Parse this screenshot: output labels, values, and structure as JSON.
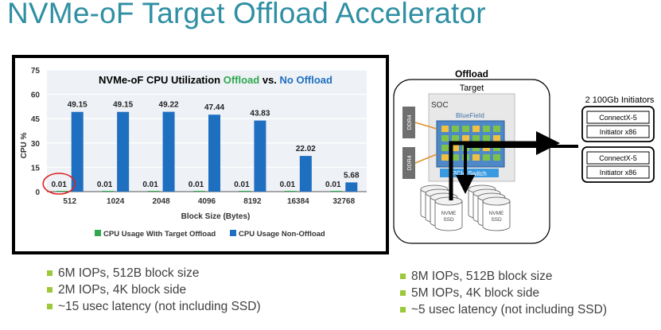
{
  "slide": {
    "title": "NVMe-oF Target Offload Accelerator"
  },
  "chart_data": {
    "type": "bar",
    "title_parts": [
      {
        "text": "NVMe-oF CPU Utilization ",
        "color": "#000000"
      },
      {
        "text": "Offload",
        "color": "#2fa84f"
      },
      {
        "text": " vs. ",
        "color": "#000000"
      },
      {
        "text": "No Offload",
        "color": "#1f6fc1"
      }
    ],
    "categories": [
      "512",
      "1024",
      "2048",
      "4096",
      "8192",
      "16384",
      "32768"
    ],
    "series": [
      {
        "name": "CPU Usage With Target Offload",
        "color": "#2fa84f",
        "values": [
          0.01,
          0.01,
          0.01,
          0.01,
          0.01,
          0.01,
          0.01
        ]
      },
      {
        "name": "CPU Usage Non-Offload",
        "color": "#1f6fc1",
        "values": [
          49.15,
          49.15,
          49.22,
          47.44,
          43.83,
          22.02,
          5.68
        ]
      }
    ],
    "xlabel": "Block Size (Bytes)",
    "ylabel": "CPU %",
    "yticks": [
      0,
      15,
      30,
      45,
      60,
      75
    ],
    "ylim": [
      0,
      75
    ],
    "grid": true,
    "legend": "bottom",
    "highlight": {
      "series": 0,
      "index": 0,
      "color": "#e02020"
    }
  },
  "diagram": {
    "title": "Offload",
    "target_label": "Target",
    "soc_label": "SOC",
    "bluefield_label": "BlueField",
    "switch_label": "PCIe Switch",
    "ddr_labels": [
      "DDR4",
      "DDR4"
    ],
    "initiators_title": "2 100Gb Initiators",
    "initiators": [
      {
        "nic": "ConnectX-5",
        "host": "Initiator x86"
      },
      {
        "nic": "ConnectX-5",
        "host": "Initiator x86"
      }
    ],
    "ssd_label_line1": "NVME",
    "ssd_label_line2": "SSD"
  },
  "bullets_left": [
    "6M IOPs, 512B block size",
    "2M IOPs, 4K block side",
    "~15 usec latency (not including SSD)"
  ],
  "bullets_right": [
    "8M IOPs, 512B block size",
    "5M IOPs, 4K block side",
    "~5 usec latency (not including SSD)"
  ]
}
